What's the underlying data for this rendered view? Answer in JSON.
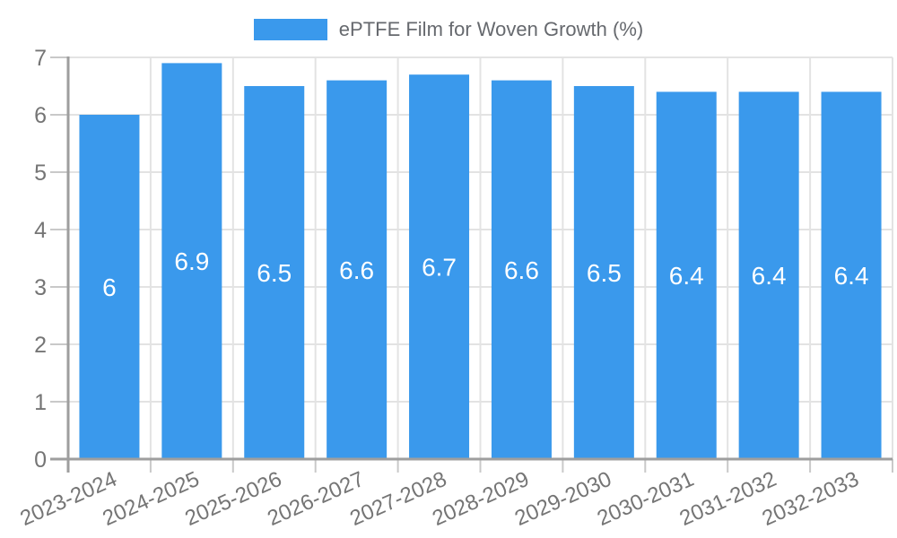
{
  "chart_data": {
    "type": "bar",
    "title": "ePTFE Film for Woven Growth (%)",
    "legend_position": "top",
    "categories": [
      "2023-2024",
      "2024-2025",
      "2025-2026",
      "2026-2027",
      "2027-2028",
      "2028-2029",
      "2029-2030",
      "2030-2031",
      "2031-2032",
      "2032-2033"
    ],
    "values": [
      6,
      6.9,
      6.5,
      6.6,
      6.7,
      6.6,
      6.5,
      6.4,
      6.4,
      6.4
    ],
    "value_labels": [
      "6",
      "6.9",
      "6.5",
      "6.6",
      "6.7",
      "6.6",
      "6.5",
      "6.4",
      "6.4",
      "6.4"
    ],
    "xlabel": "",
    "ylabel": "",
    "ylim": [
      0,
      7
    ],
    "yticks": [
      0,
      1,
      2,
      3,
      4,
      5,
      6,
      7
    ],
    "grid": true,
    "colors": {
      "bar": "#3a99ec",
      "bar_label": "#ffffff",
      "grid": "#e3e3e3",
      "tick": "#c9c9c9",
      "axis": "#9e9e9e",
      "axis_text": "#757575",
      "legend_text": "#66696e",
      "background": "#ffffff"
    }
  }
}
